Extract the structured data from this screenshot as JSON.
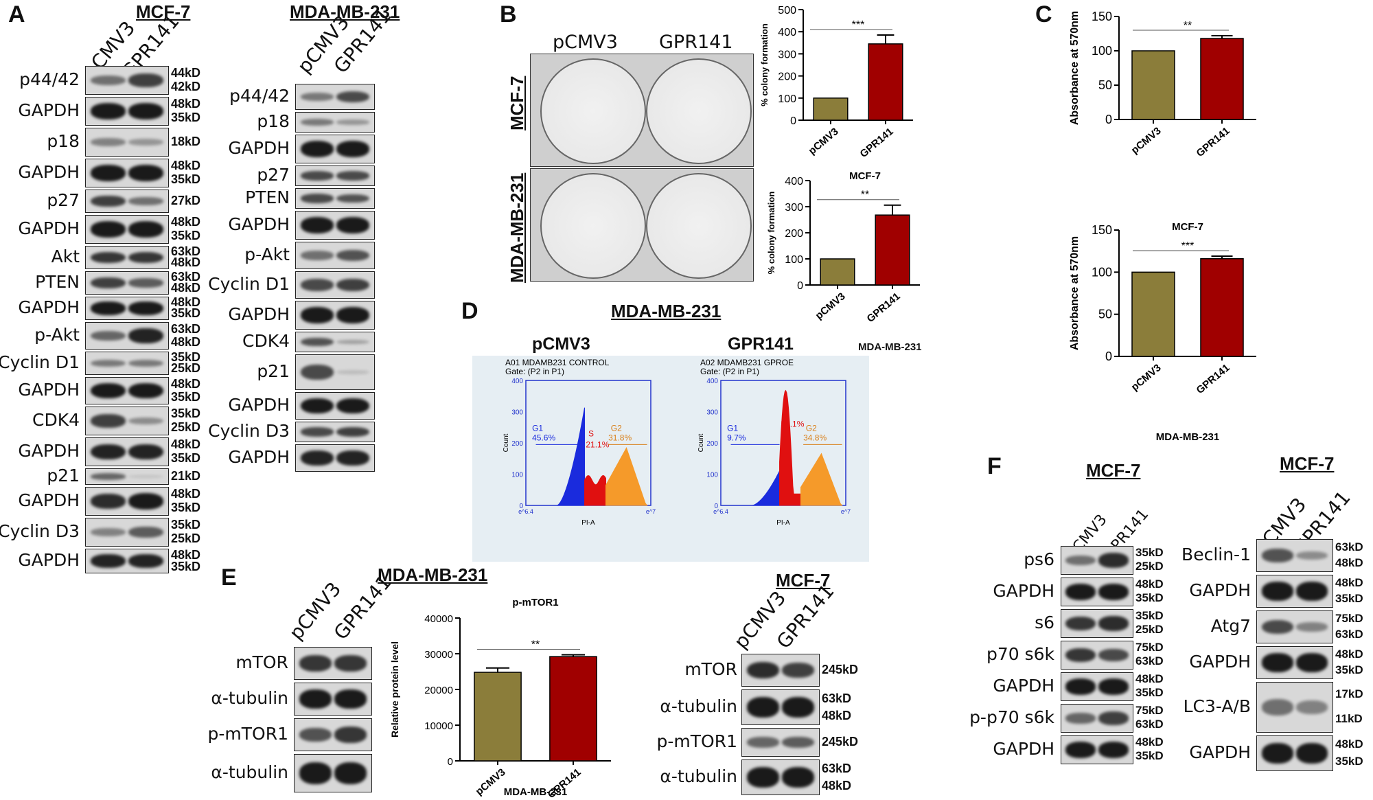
{
  "panels": {
    "A": "A",
    "B": "B",
    "C": "C",
    "D": "D",
    "E": "E",
    "F": "F"
  },
  "lanes": {
    "ctrl": "pCMV3",
    "gpr": "GPR141"
  },
  "panelA": {
    "mcf7_title": "MCF-7",
    "mda_title": "MDA-MB-231",
    "mcf7_blots": [
      {
        "label": "p44/42",
        "kd": [
          "44kD",
          "42kD"
        ],
        "b1": 0.55,
        "b2": 0.8
      },
      {
        "label": "GAPDH",
        "kd": [
          "48kD",
          "35kD"
        ],
        "b1": 1,
        "b2": 1
      },
      {
        "label": "p18",
        "kd": [
          "18kD"
        ],
        "b1": 0.45,
        "b2": 0.35
      },
      {
        "label": "GAPDH",
        "kd": [
          "48kD",
          "35kD"
        ],
        "b1": 1,
        "b2": 1
      },
      {
        "label": "p27",
        "kd": [
          "27kD"
        ],
        "b1": 0.8,
        "b2": 0.55
      },
      {
        "label": "GAPDH",
        "kd": [
          "48kD",
          "35kD"
        ],
        "b1": 1,
        "b2": 1
      },
      {
        "label": "Akt",
        "kd": [
          "63kD",
          "48kD"
        ],
        "b1": 0.85,
        "b2": 0.85
      },
      {
        "label": "PTEN",
        "kd": [
          "63kD",
          "48kD"
        ],
        "b1": 0.8,
        "b2": 0.65
      },
      {
        "label": "GAPDH",
        "kd": [
          "48kD",
          "35kD"
        ],
        "b1": 1,
        "b2": 1
      },
      {
        "label": "p-Akt",
        "kd": [
          "63kD",
          "48kD"
        ],
        "b1": 0.6,
        "b2": 0.95
      },
      {
        "label": "Cyclin D1",
        "kd": [
          "35kD",
          "25kD"
        ],
        "b1": 0.5,
        "b2": 0.5
      },
      {
        "label": "GAPDH",
        "kd": [
          "48kD",
          "35kD"
        ],
        "b1": 1,
        "b2": 1
      },
      {
        "label": "CDK4",
        "kd": [
          "35kD",
          "25kD"
        ],
        "b1": 0.8,
        "b2": 0.4
      },
      {
        "label": "GAPDH",
        "kd": [
          "48kD",
          "35kD"
        ],
        "b1": 0.95,
        "b2": 0.95
      },
      {
        "label": "p21",
        "kd": [
          "21kD"
        ],
        "b1": 0.6,
        "b2": 0.1
      },
      {
        "label": "GAPDH",
        "kd": [
          "48kD",
          "35kD"
        ],
        "b1": 0.9,
        "b2": 1
      },
      {
        "label": "Cyclin D3",
        "kd": [
          "35kD",
          "25kD"
        ],
        "b1": 0.45,
        "b2": 0.65
      },
      {
        "label": "GAPDH",
        "kd": [
          "48kD",
          "35kD"
        ],
        "b1": 0.95,
        "b2": 0.95
      }
    ],
    "mda_blots": [
      {
        "label": "p44/42",
        "b1": 0.5,
        "b2": 0.75
      },
      {
        "label": "p18",
        "b1": 0.5,
        "b2": 0.35
      },
      {
        "label": "GAPDH",
        "b1": 1,
        "b2": 1
      },
      {
        "label": "p27",
        "b1": 0.75,
        "b2": 0.75
      },
      {
        "label": "PTEN",
        "b1": 0.75,
        "b2": 0.7
      },
      {
        "label": "GAPDH",
        "b1": 1,
        "b2": 1
      },
      {
        "label": "p-Akt",
        "b1": 0.55,
        "b2": 0.7
      },
      {
        "label": "Cyclin D1",
        "b1": 0.75,
        "b2": 0.8
      },
      {
        "label": "GAPDH",
        "b1": 1,
        "b2": 1
      },
      {
        "label": "CDK4",
        "b1": 0.7,
        "b2": 0.3
      },
      {
        "label": "p21",
        "b1": 0.75,
        "b2": 0.15
      },
      {
        "label": "GAPDH",
        "b1": 1,
        "b2": 1
      },
      {
        "label": "Cyclin D3",
        "b1": 0.75,
        "b2": 0.8
      },
      {
        "label": "GAPDH",
        "b1": 0.95,
        "b2": 0.95
      }
    ]
  },
  "panelB": {
    "plate_labels": [
      "pCMV3",
      "GPR141"
    ],
    "row_labels": [
      "MCF-7",
      "MDA-MB-231"
    ]
  },
  "panelD": {
    "title": "MDA-MB-231",
    "col_labels": [
      "pCMV3",
      "GPR141"
    ],
    "side_label": "MDA-MB-231",
    "plots": [
      {
        "header1": "A01 MDAMB231 CONTROL",
        "header2": "Gate: (P2 in P1)",
        "g1": "G1",
        "g1v": "45.6%",
        "s": "S",
        "sv": "21.1%",
        "g2": "G2",
        "g2v": "31.8%"
      },
      {
        "header1": "A02 MDAMB231 GPROE",
        "header2": "Gate: (P2 in P1)",
        "g1": "G1",
        "g1v": "9.7%",
        "s": "S",
        "sv": "54.1%",
        "g2": "G2",
        "g2v": "34.8%"
      }
    ],
    "yaxis": "Count",
    "xaxis": "PI-A",
    "yticks": [
      "0",
      "100",
      "200",
      "300",
      "400"
    ],
    "xticks": [
      "e^6.4",
      "e^7"
    ]
  },
  "panelE": {
    "mda_title": "MDA-MB-231",
    "mcf7_title": "MCF-7",
    "mda_blots": [
      {
        "label": "mTOR",
        "b1": 0.85,
        "b2": 0.85
      },
      {
        "label": "α-tubulin",
        "b1": 1,
        "b2": 1
      },
      {
        "label": "p-mTOR1",
        "b1": 0.7,
        "b2": 0.85
      },
      {
        "label": "α-tubulin",
        "b1": 1,
        "b2": 1
      }
    ],
    "mcf7_blots": [
      {
        "label": "mTOR",
        "kd": [
          "245kD"
        ],
        "b1": 0.9,
        "b2": 0.8
      },
      {
        "label": "α-tubulin",
        "kd": [
          "63kD",
          "48kD"
        ],
        "b1": 1,
        "b2": 1
      },
      {
        "label": "p-mTOR1",
        "kd": [
          "245kD"
        ],
        "b1": 0.6,
        "b2": 0.65
      },
      {
        "label": "α-tubulin",
        "kd": [
          "63kD",
          "48kD"
        ],
        "b1": 1,
        "b2": 1
      }
    ]
  },
  "panelF": {
    "mcf7_title": "MCF-7",
    "left_blots": [
      {
        "label": "ps6",
        "kd": [
          "35kD",
          "25kD"
        ],
        "b1": 0.55,
        "b2": 0.9
      },
      {
        "label": "GAPDH",
        "kd": [
          "48kD",
          "35kD"
        ],
        "b1": 1,
        "b2": 1
      },
      {
        "label": "s6",
        "kd": [
          "35kD",
          "25kD"
        ],
        "b1": 0.85,
        "b2": 0.9
      },
      {
        "label": "p70 s6k",
        "kd": [
          "75kD",
          "63kD"
        ],
        "b1": 0.85,
        "b2": 0.75
      },
      {
        "label": "GAPDH",
        "kd": [
          "48kD",
          "35kD"
        ],
        "b1": 1,
        "b2": 1
      },
      {
        "label": "p-p70 s6k",
        "kd": [
          "75kD",
          "63kD"
        ],
        "b1": 0.6,
        "b2": 0.8
      },
      {
        "label": "GAPDH",
        "kd": [
          "48kD",
          "35kD"
        ],
        "b1": 1,
        "b2": 1
      }
    ],
    "right_blots": [
      {
        "label": "Beclin-1",
        "kd": [
          "63kD",
          "48kD"
        ],
        "b1": 0.7,
        "b2": 0.4
      },
      {
        "label": "GAPDH",
        "kd": [
          "48kD",
          "35kD"
        ],
        "b1": 1,
        "b2": 1
      },
      {
        "label": "Atg7",
        "kd": [
          "75kD",
          "63kD"
        ],
        "b1": 0.75,
        "b2": 0.45
      },
      {
        "label": "GAPDH",
        "kd": [
          "48kD",
          "35kD"
        ],
        "b1": 1,
        "b2": 1
      },
      {
        "label": "LC3-A/B",
        "kd": [
          "17kD",
          "11kD"
        ],
        "b1": 0.55,
        "b2": 0.45
      },
      {
        "label": "GAPDH",
        "kd": [
          "48kD",
          "35kD"
        ],
        "b1": 1,
        "b2": 1
      }
    ]
  },
  "chart_data": [
    {
      "id": "B-top",
      "type": "bar",
      "categories": [
        "pCMV3",
        "GPR141"
      ],
      "values": [
        100,
        345
      ],
      "errors": [
        0,
        40
      ],
      "title": "",
      "ylabel": "% colony formation",
      "ylim": [
        0,
        500
      ],
      "yticks": [
        0,
        100,
        200,
        300,
        400,
        500
      ],
      "significance": "***",
      "colors": [
        "#8b7d3a",
        "#a00000"
      ]
    },
    {
      "id": "B-bottom",
      "type": "bar",
      "categories": [
        "pCMV3",
        "GPR141"
      ],
      "values": [
        100,
        268
      ],
      "errors": [
        0,
        38
      ],
      "title": "MCF-7",
      "ylabel": "% colony formation",
      "ylim": [
        0,
        400
      ],
      "yticks": [
        0,
        100,
        200,
        300,
        400
      ],
      "significance": "**",
      "colors": [
        "#8b7d3a",
        "#a00000"
      ]
    },
    {
      "id": "C-top",
      "type": "bar",
      "categories": [
        "pCMV3",
        "GPR141"
      ],
      "values": [
        100,
        118
      ],
      "errors": [
        0,
        4
      ],
      "title": "",
      "ylabel": "Absorbance at 570nm",
      "ylim": [
        0,
        150
      ],
      "yticks": [
        0,
        50,
        100,
        150
      ],
      "significance": "**",
      "colors": [
        "#8b7d3a",
        "#a00000"
      ]
    },
    {
      "id": "C-bottom",
      "type": "bar",
      "categories": [
        "pCMV3",
        "GPR141"
      ],
      "values": [
        100,
        116
      ],
      "errors": [
        0,
        3
      ],
      "title": "MCF-7",
      "xlabel": "MDA-MB-231",
      "ylabel": "Absorbance at 570nm",
      "ylim": [
        0,
        150
      ],
      "yticks": [
        0,
        50,
        100,
        150
      ],
      "significance": "***",
      "colors": [
        "#8b7d3a",
        "#a00000"
      ]
    },
    {
      "id": "E-chart",
      "type": "bar",
      "categories": [
        "pCMV3",
        "GPR141"
      ],
      "values": [
        24800,
        29200
      ],
      "errors": [
        1200,
        500
      ],
      "title": "p-mTOR1",
      "xlabel": "MDA-MB-231",
      "ylabel": "Relative protein level",
      "ylim": [
        0,
        40000
      ],
      "yticks": [
        0,
        10000,
        20000,
        30000,
        40000
      ],
      "significance": "**",
      "colors": [
        "#8b7d3a",
        "#a00000"
      ]
    }
  ]
}
